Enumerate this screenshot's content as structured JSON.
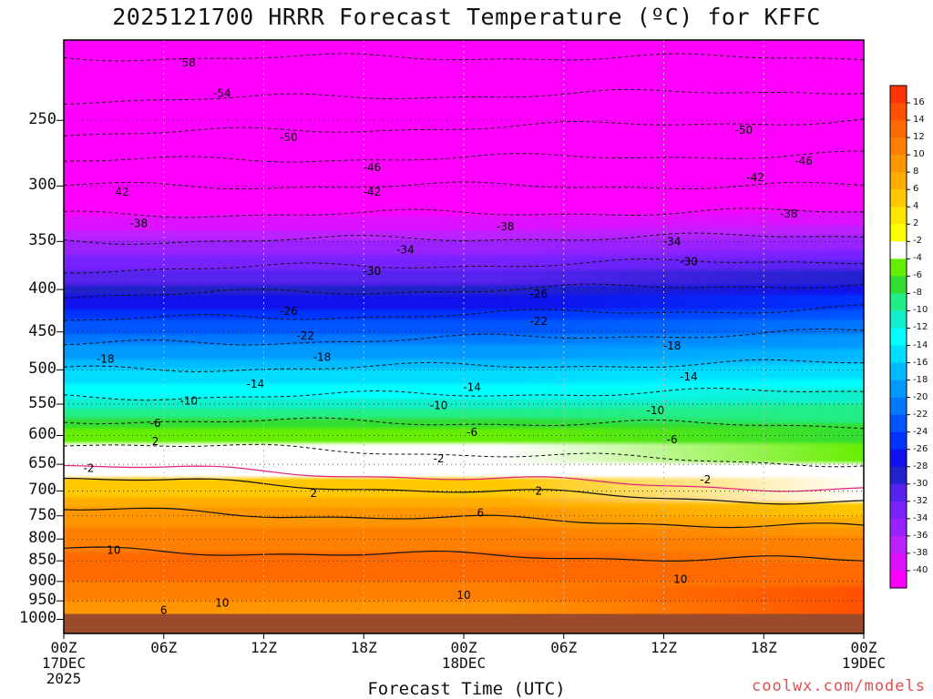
{
  "title": "2025121700 HRRR Forecast Temperature (ºC) for KFFC",
  "x_axis_title": "Forecast Time (UTC)",
  "credit": "coolwx.com/models",
  "chart_data": {
    "type": "heatmap",
    "title": "2025121700 HRRR Forecast Temperature (ºC) for KFFC",
    "xlabel": "Forecast Time (UTC)",
    "ylabel": "",
    "x_range_hours": [
      0,
      48
    ],
    "y_range_hpa": [
      1040,
      200
    ],
    "y_ticks": [
      250,
      300,
      350,
      400,
      450,
      500,
      550,
      600,
      650,
      700,
      750,
      800,
      850,
      900,
      950,
      1000
    ],
    "x_ticks": [
      {
        "hour": 0,
        "lines": [
          "00Z",
          "17DEC",
          "2025"
        ]
      },
      {
        "hour": 6,
        "lines": [
          "06Z"
        ]
      },
      {
        "hour": 12,
        "lines": [
          "12Z"
        ]
      },
      {
        "hour": 18,
        "lines": [
          "18Z"
        ]
      },
      {
        "hour": 24,
        "lines": [
          "00Z",
          "18DEC"
        ]
      },
      {
        "hour": 30,
        "lines": [
          "06Z"
        ]
      },
      {
        "hour": 36,
        "lines": [
          "12Z"
        ]
      },
      {
        "hour": 42,
        "lines": [
          "18Z"
        ]
      },
      {
        "hour": 48,
        "lines": [
          "00Z",
          "19DEC"
        ]
      }
    ],
    "ground_pressure_hpa": 985,
    "colorbar_labels": [
      "16",
      "14",
      "12",
      "10",
      "8",
      "6",
      "4",
      "2",
      "-2",
      "-4",
      "-6",
      "-8",
      "-10",
      "-12",
      "-14",
      "-16",
      "-18",
      "-20",
      "-22",
      "-24",
      "-26",
      "-28",
      "-30",
      "-32",
      "-34",
      "-36",
      "-38",
      "-40"
    ],
    "colorbar_colors": [
      "#ff3300",
      "#ff5000",
      "#ff6a00",
      "#ff8000",
      "#ff9600",
      "#ffad00",
      "#ffc800",
      "#ffe600",
      "#ffff00",
      "#ffffff",
      "#66ee00",
      "#33dd33",
      "#22ee88",
      "#11eecc",
      "#00ffff",
      "#00ddff",
      "#00bbff",
      "#0099ff",
      "#0077ff",
      "#0055ff",
      "#0033ff",
      "#1111ee",
      "#2222cc",
      "#5522ee",
      "#7722ff",
      "#9922ff",
      "#bb22ff",
      "#dd11ff",
      "#ff00ff"
    ],
    "profile_hour0": {
      "pressure_hpa": [
        210,
        250,
        300,
        350,
        400,
        450,
        500,
        550,
        600,
        650,
        700,
        750,
        800,
        850,
        900,
        950,
        985
      ],
      "temperature_c": [
        -58,
        -52,
        -42,
        -34,
        -27,
        -20,
        -14,
        -9,
        -3,
        1,
        3,
        7,
        9,
        11,
        10,
        8,
        7
      ]
    },
    "profile_hour48": {
      "pressure_hpa": [
        210,
        250,
        300,
        350,
        400,
        450,
        500,
        550,
        600,
        650,
        700,
        750,
        800,
        850,
        900,
        950,
        985
      ],
      "temperature_c": [
        -58,
        -50,
        -42,
        -33,
        -25,
        -18,
        -13,
        -8,
        -5,
        -2,
        0,
        4,
        8,
        10,
        11,
        14,
        13
      ]
    },
    "contour_labels": [
      {
        "label": "58",
        "hour": 7.5,
        "hpa": 213
      },
      {
        "label": "-54",
        "hour": 9.5,
        "hpa": 232
      },
      {
        "label": "-50",
        "hour": 13.5,
        "hpa": 262
      },
      {
        "label": "-50",
        "hour": 40.8,
        "hpa": 257
      },
      {
        "label": "-46",
        "hour": 18.5,
        "hpa": 285
      },
      {
        "label": "-46",
        "hour": 44.4,
        "hpa": 280
      },
      {
        "label": "42",
        "hour": 3.5,
        "hpa": 305
      },
      {
        "label": "-42",
        "hour": 18.5,
        "hpa": 305
      },
      {
        "label": "-42",
        "hour": 41.5,
        "hpa": 293
      },
      {
        "label": "-38",
        "hour": 4.5,
        "hpa": 333
      },
      {
        "label": "-38",
        "hour": 26.5,
        "hpa": 336
      },
      {
        "label": "-38",
        "hour": 43.5,
        "hpa": 324
      },
      {
        "label": "-34",
        "hour": 20.5,
        "hpa": 358
      },
      {
        "label": "-34",
        "hour": 36.5,
        "hpa": 350
      },
      {
        "label": "-30",
        "hour": 18.5,
        "hpa": 380
      },
      {
        "label": "-30",
        "hour": 37.5,
        "hpa": 370
      },
      {
        "label": "-26",
        "hour": 13.5,
        "hpa": 425
      },
      {
        "label": "-26",
        "hour": 28.5,
        "hpa": 405
      },
      {
        "label": "-22",
        "hour": 14.5,
        "hpa": 455
      },
      {
        "label": "-22",
        "hour": 28.5,
        "hpa": 437
      },
      {
        "label": "-18",
        "hour": 2.5,
        "hpa": 485
      },
      {
        "label": "-18",
        "hour": 15.5,
        "hpa": 483
      },
      {
        "label": "-18",
        "hour": 36.5,
        "hpa": 468
      },
      {
        "label": "-14",
        "hour": 11.5,
        "hpa": 520
      },
      {
        "label": "-14",
        "hour": 24.5,
        "hpa": 525
      },
      {
        "label": "-14",
        "hour": 37.5,
        "hpa": 510
      },
      {
        "label": "-10",
        "hour": 7.5,
        "hpa": 545
      },
      {
        "label": "-10",
        "hour": 22.5,
        "hpa": 552
      },
      {
        "label": "-10",
        "hour": 35.5,
        "hpa": 560
      },
      {
        "label": "-6",
        "hour": 5.5,
        "hpa": 580
      },
      {
        "label": "-6",
        "hour": 24.5,
        "hpa": 595
      },
      {
        "label": "-6",
        "hour": 36.5,
        "hpa": 607
      },
      {
        "label": "2",
        "hour": 5.5,
        "hpa": 610
      },
      {
        "label": "-2",
        "hour": 22.5,
        "hpa": 640
      },
      {
        "label": "-2",
        "hour": 38.5,
        "hpa": 678
      },
      {
        "label": "-2",
        "hour": 1.5,
        "hpa": 657
      },
      {
        "label": "2",
        "hour": 15,
        "hpa": 705
      },
      {
        "label": "2",
        "hour": 28.5,
        "hpa": 700
      },
      {
        "label": "6",
        "hour": 25,
        "hpa": 744
      },
      {
        "label": "10",
        "hour": 3,
        "hpa": 825
      },
      {
        "label": "10",
        "hour": 9.5,
        "hpa": 955
      },
      {
        "label": "10",
        "hour": 24,
        "hpa": 935
      },
      {
        "label": "10",
        "hour": 37,
        "hpa": 895
      },
      {
        "label": "6",
        "hour": 6,
        "hpa": 975
      }
    ]
  },
  "colors": {
    "ground": "#9b4a2a",
    "contour": "#111111",
    "freezing_line": "#e0207a",
    "grid": "#bdbdbd",
    "credit": "#e05050"
  }
}
